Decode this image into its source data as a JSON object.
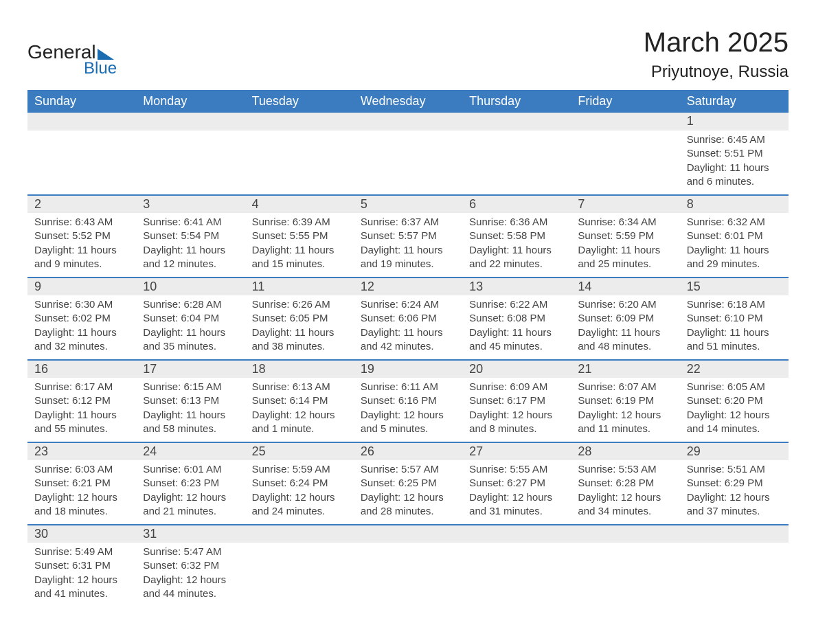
{
  "brand": {
    "part1": "General",
    "part2": "Blue",
    "color1": "#222222",
    "color2": "#1a6bb0"
  },
  "title": "March 2025",
  "subtitle": "Priyutnoye, Russia",
  "colors": {
    "header_bg": "#3b7bbf",
    "header_text": "#ffffff",
    "daynum_bg": "#ececec",
    "row_border": "#3b7bbf",
    "body_text": "#444444",
    "page_bg": "#ffffff"
  },
  "fontsizes": {
    "title": 40,
    "subtitle": 24,
    "th": 18,
    "daynum": 18,
    "detail": 15
  },
  "days_of_week": [
    "Sunday",
    "Monday",
    "Tuesday",
    "Wednesday",
    "Thursday",
    "Friday",
    "Saturday"
  ],
  "weeks": [
    [
      null,
      null,
      null,
      null,
      null,
      null,
      {
        "n": "1",
        "sunrise": "6:45 AM",
        "sunset": "5:51 PM",
        "daylight": "11 hours and 6 minutes."
      }
    ],
    [
      {
        "n": "2",
        "sunrise": "6:43 AM",
        "sunset": "5:52 PM",
        "daylight": "11 hours and 9 minutes."
      },
      {
        "n": "3",
        "sunrise": "6:41 AM",
        "sunset": "5:54 PM",
        "daylight": "11 hours and 12 minutes."
      },
      {
        "n": "4",
        "sunrise": "6:39 AM",
        "sunset": "5:55 PM",
        "daylight": "11 hours and 15 minutes."
      },
      {
        "n": "5",
        "sunrise": "6:37 AM",
        "sunset": "5:57 PM",
        "daylight": "11 hours and 19 minutes."
      },
      {
        "n": "6",
        "sunrise": "6:36 AM",
        "sunset": "5:58 PM",
        "daylight": "11 hours and 22 minutes."
      },
      {
        "n": "7",
        "sunrise": "6:34 AM",
        "sunset": "5:59 PM",
        "daylight": "11 hours and 25 minutes."
      },
      {
        "n": "8",
        "sunrise": "6:32 AM",
        "sunset": "6:01 PM",
        "daylight": "11 hours and 29 minutes."
      }
    ],
    [
      {
        "n": "9",
        "sunrise": "6:30 AM",
        "sunset": "6:02 PM",
        "daylight": "11 hours and 32 minutes."
      },
      {
        "n": "10",
        "sunrise": "6:28 AM",
        "sunset": "6:04 PM",
        "daylight": "11 hours and 35 minutes."
      },
      {
        "n": "11",
        "sunrise": "6:26 AM",
        "sunset": "6:05 PM",
        "daylight": "11 hours and 38 minutes."
      },
      {
        "n": "12",
        "sunrise": "6:24 AM",
        "sunset": "6:06 PM",
        "daylight": "11 hours and 42 minutes."
      },
      {
        "n": "13",
        "sunrise": "6:22 AM",
        "sunset": "6:08 PM",
        "daylight": "11 hours and 45 minutes."
      },
      {
        "n": "14",
        "sunrise": "6:20 AM",
        "sunset": "6:09 PM",
        "daylight": "11 hours and 48 minutes."
      },
      {
        "n": "15",
        "sunrise": "6:18 AM",
        "sunset": "6:10 PM",
        "daylight": "11 hours and 51 minutes."
      }
    ],
    [
      {
        "n": "16",
        "sunrise": "6:17 AM",
        "sunset": "6:12 PM",
        "daylight": "11 hours and 55 minutes."
      },
      {
        "n": "17",
        "sunrise": "6:15 AM",
        "sunset": "6:13 PM",
        "daylight": "11 hours and 58 minutes."
      },
      {
        "n": "18",
        "sunrise": "6:13 AM",
        "sunset": "6:14 PM",
        "daylight": "12 hours and 1 minute."
      },
      {
        "n": "19",
        "sunrise": "6:11 AM",
        "sunset": "6:16 PM",
        "daylight": "12 hours and 5 minutes."
      },
      {
        "n": "20",
        "sunrise": "6:09 AM",
        "sunset": "6:17 PM",
        "daylight": "12 hours and 8 minutes."
      },
      {
        "n": "21",
        "sunrise": "6:07 AM",
        "sunset": "6:19 PM",
        "daylight": "12 hours and 11 minutes."
      },
      {
        "n": "22",
        "sunrise": "6:05 AM",
        "sunset": "6:20 PM",
        "daylight": "12 hours and 14 minutes."
      }
    ],
    [
      {
        "n": "23",
        "sunrise": "6:03 AM",
        "sunset": "6:21 PM",
        "daylight": "12 hours and 18 minutes."
      },
      {
        "n": "24",
        "sunrise": "6:01 AM",
        "sunset": "6:23 PM",
        "daylight": "12 hours and 21 minutes."
      },
      {
        "n": "25",
        "sunrise": "5:59 AM",
        "sunset": "6:24 PM",
        "daylight": "12 hours and 24 minutes."
      },
      {
        "n": "26",
        "sunrise": "5:57 AM",
        "sunset": "6:25 PM",
        "daylight": "12 hours and 28 minutes."
      },
      {
        "n": "27",
        "sunrise": "5:55 AM",
        "sunset": "6:27 PM",
        "daylight": "12 hours and 31 minutes."
      },
      {
        "n": "28",
        "sunrise": "5:53 AM",
        "sunset": "6:28 PM",
        "daylight": "12 hours and 34 minutes."
      },
      {
        "n": "29",
        "sunrise": "5:51 AM",
        "sunset": "6:29 PM",
        "daylight": "12 hours and 37 minutes."
      }
    ],
    [
      {
        "n": "30",
        "sunrise": "5:49 AM",
        "sunset": "6:31 PM",
        "daylight": "12 hours and 41 minutes."
      },
      {
        "n": "31",
        "sunrise": "5:47 AM",
        "sunset": "6:32 PM",
        "daylight": "12 hours and 44 minutes."
      },
      null,
      null,
      null,
      null,
      null
    ]
  ],
  "labels": {
    "sunrise": "Sunrise: ",
    "sunset": "Sunset: ",
    "daylight": "Daylight: "
  }
}
